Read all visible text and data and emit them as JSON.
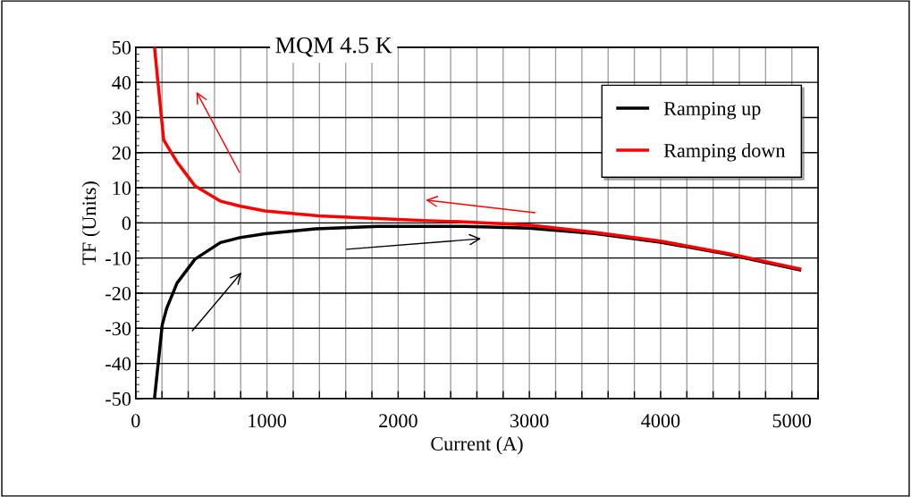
{
  "chart_data": {
    "type": "line",
    "title": "MQM 4.5 K",
    "xlabel": "Current (A)",
    "ylabel": "TF (Units)",
    "xlim": [
      0,
      5200
    ],
    "ylim": [
      -50,
      50
    ],
    "xticks": [
      0,
      {
        "value": 200,
        "label": null
      },
      {
        "value": 400,
        "label": null
      },
      {
        "value": 600,
        "label": null
      },
      {
        "value": 800,
        "label": null
      },
      1000,
      {
        "value": 1200,
        "label": null
      },
      {
        "value": 1400,
        "label": null
      },
      {
        "value": 1600,
        "label": null
      },
      {
        "value": 1800,
        "label": null
      },
      2000,
      {
        "value": 2200,
        "label": null
      },
      {
        "value": 2400,
        "label": null
      },
      {
        "value": 2600,
        "label": null
      },
      {
        "value": 2800,
        "label": null
      },
      3000,
      {
        "value": 3200,
        "label": null
      },
      {
        "value": 3400,
        "label": null
      },
      {
        "value": 3600,
        "label": null
      },
      {
        "value": 3800,
        "label": null
      },
      4000,
      {
        "value": 4200,
        "label": null
      },
      {
        "value": 4400,
        "label": null
      },
      {
        "value": 4600,
        "label": null
      },
      {
        "value": 4800,
        "label": null
      },
      5000,
      {
        "value": 5200,
        "label": null
      }
    ],
    "yticks": [
      -50,
      -40,
      -30,
      -20,
      -10,
      0,
      10,
      20,
      30,
      40,
      50
    ],
    "grid": true,
    "legend": "top right",
    "marker": "none",
    "line_style": "solid",
    "series": [
      {
        "name": "Ramping up",
        "color": "#000000",
        "x": [
          143,
          202,
          236,
          315,
          452,
          645,
          792,
          985,
          1370,
          1847,
          2500,
          2700,
          3000,
          3500,
          4000,
          4500,
          5060
        ],
        "values": [
          -50,
          -29,
          -24.3,
          -17.1,
          -10.3,
          -5.6,
          -4.2,
          -3.1,
          -1.7,
          -1.0,
          -1.0,
          -1.2,
          -1.5,
          -3.0,
          -5.5,
          -8.8,
          -13.4
        ]
      },
      {
        "name": "Ramping down",
        "color": "#ff0000",
        "x": [
          143,
          213,
          315,
          452,
          645,
          792,
          985,
          1394,
          1803,
          2000,
          2187,
          2500,
          3000,
          3500,
          4000,
          4500,
          5060
        ],
        "values": [
          50,
          23.6,
          17.3,
          10.5,
          6.2,
          4.8,
          3.4,
          2.0,
          1.3,
          1.0,
          0.7,
          0.3,
          -0.6,
          -2.7,
          -5.2,
          -8.6,
          -13.1
        ]
      }
    ]
  }
}
